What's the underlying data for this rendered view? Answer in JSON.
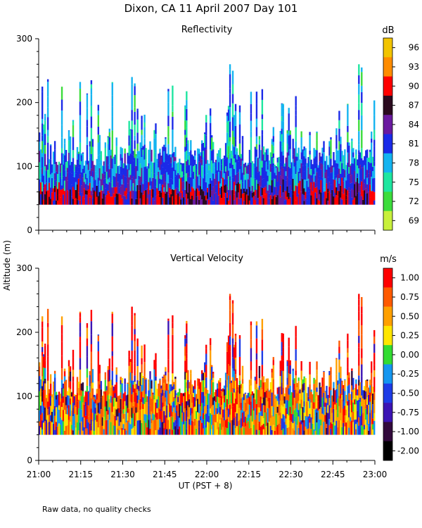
{
  "title": "Dixon, CA 11 April 2007  Day 101",
  "footer": "Raw data, no quality checks",
  "chart_data": [
    {
      "type": "heatmap",
      "title": "Reflectivity",
      "ylabel": "Altitude (m)",
      "xlabel": "UT  (PST + 8)",
      "ylim": [
        0,
        300
      ],
      "y_ticks": [
        "0",
        "100",
        "200",
        "300"
      ],
      "x_ticks": [
        "21:00",
        "21:15",
        "21:30",
        "21:45",
        "22:00",
        "22:15",
        "22:30",
        "22:45",
        "23:00"
      ],
      "xlim": [
        "21:00",
        "23:00"
      ],
      "data_altitude_range_m": [
        40,
        260
      ],
      "colorbar": {
        "unit": "dB",
        "labels": [
          "96",
          "93",
          "90",
          "87",
          "84",
          "81",
          "78",
          "75",
          "72",
          "69"
        ],
        "colors": [
          "#f2c400",
          "#ff8c00",
          "#ff0000",
          "#2a0a1e",
          "#6a1aa0",
          "#1a2ae8",
          "#14b4f0",
          "#1ee6a0",
          "#3cdc3c",
          "#c8f03c"
        ]
      }
    },
    {
      "type": "heatmap",
      "title": "Vertical Velocity",
      "ylabel": "Altitude (m)",
      "xlabel": "UT  (PST + 8)",
      "ylim": [
        0,
        300
      ],
      "y_ticks": [
        "0",
        "100",
        "200",
        "300"
      ],
      "x_ticks": [
        "21:00",
        "21:15",
        "21:30",
        "21:45",
        "22:00",
        "22:15",
        "22:30",
        "22:45",
        "23:00"
      ],
      "xlim": [
        "21:00",
        "23:00"
      ],
      "data_altitude_range_m": [
        40,
        260
      ],
      "colorbar": {
        "unit": "m/s",
        "labels": [
          "1.00",
          "0.75",
          "0.50",
          "0.25",
          "0.00",
          "-0.25",
          "-0.50",
          "-0.75",
          "-1.00",
          "-2.00"
        ],
        "colors": [
          "#ff0000",
          "#ff5a00",
          "#ffa000",
          "#ffe600",
          "#32dc32",
          "#1496f0",
          "#1e3ce6",
          "#3c14b4",
          "#320a3c",
          "#000000"
        ]
      }
    }
  ]
}
